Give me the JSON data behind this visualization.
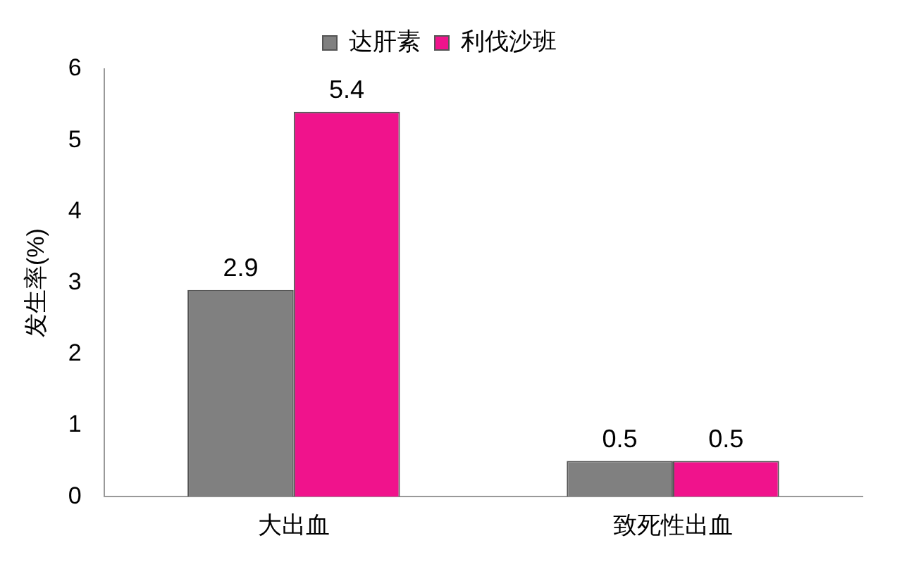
{
  "chart_data": {
    "type": "bar",
    "categories": [
      "大出血",
      "致死性出血"
    ],
    "ylabel": "发生率(%)",
    "series": [
      {
        "name": "达肝素",
        "color": "#808080",
        "values": [
          2.9,
          0.5
        ]
      },
      {
        "name": "利伐沙班",
        "color": "#f0138c",
        "values": [
          5.4,
          0.5
        ]
      }
    ],
    "ylim": [
      0,
      6
    ],
    "yticks": [
      0,
      1,
      2,
      3,
      4,
      5,
      6
    ],
    "grid": false,
    "legend": "top",
    "data_labels": true
  }
}
